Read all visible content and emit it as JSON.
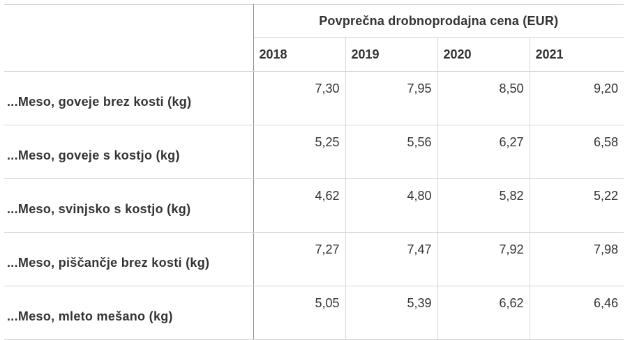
{
  "table": {
    "group_header": "Povprečna drobnoprodajna cena (EUR)",
    "years": [
      "2018",
      "2019",
      "2020",
      "2021"
    ],
    "rows": [
      {
        "label": "...Meso, goveje brez kosti (kg)",
        "values": [
          "7,30",
          "7,95",
          "8,50",
          "9,20"
        ]
      },
      {
        "label": "...Meso, goveje s kostjo (kg)",
        "values": [
          "5,25",
          "5,56",
          "6,27",
          "6,58"
        ]
      },
      {
        "label": "...Meso, svinjsko s kostjo (kg)",
        "values": [
          "4,62",
          "4,80",
          "5,82",
          "5,22"
        ]
      },
      {
        "label": "...Meso, piščančje brez kosti (kg)",
        "values": [
          "7,27",
          "7,47",
          "7,92",
          "7,98"
        ]
      },
      {
        "label": "...Meso, mleto mešano (kg)",
        "values": [
          "5,05",
          "5,39",
          "6,62",
          "6,46"
        ]
      }
    ]
  }
}
